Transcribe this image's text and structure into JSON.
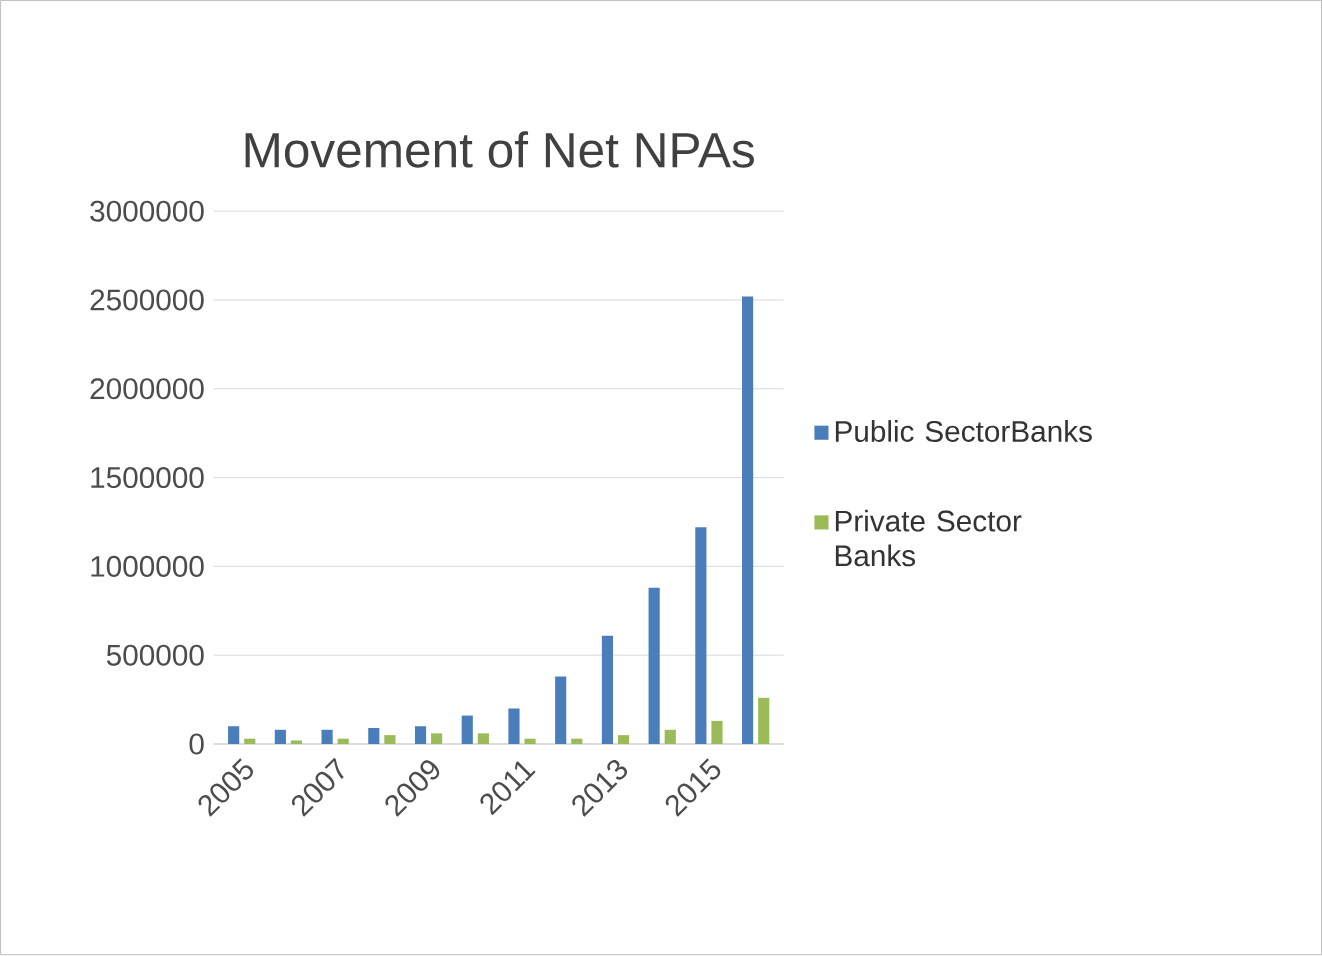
{
  "chart_data": {
    "type": "bar",
    "title": "Movement of Net NPAs",
    "categories": [
      "2005",
      null,
      "2007",
      null,
      "2009",
      null,
      "2011",
      null,
      "2013",
      null,
      "2015",
      null
    ],
    "series": [
      {
        "name": "Public SectorBanks",
        "color": "#4a7ebb",
        "values": [
          100000,
          80000,
          80000,
          90000,
          100000,
          160000,
          200000,
          380000,
          610000,
          880000,
          1220000,
          2520000
        ]
      },
      {
        "name": "Private Sector Banks",
        "color": "#9bbb59",
        "values": [
          30000,
          20000,
          30000,
          50000,
          60000,
          60000,
          30000,
          30000,
          50000,
          80000,
          130000,
          260000
        ]
      }
    ],
    "ylim": [
      0,
      3000000
    ],
    "yticks": [
      0,
      500000,
      1000000,
      1500000,
      2000000,
      2500000,
      3000000
    ],
    "grid": "y",
    "legend": "right"
  }
}
